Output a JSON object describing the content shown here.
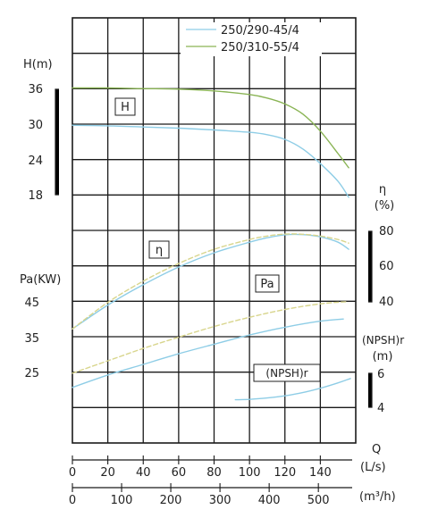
{
  "chart_data": {
    "type": "line",
    "legend": {
      "placement": "top-right",
      "entries": [
        {
          "label": "250/290-45/4",
          "color": "#8ecde6"
        },
        {
          "label": "250/310-55/4",
          "color": "#8ab455"
        }
      ]
    },
    "x_axis_ls": {
      "label": "(L/s)",
      "ticks": [
        "0",
        "20",
        "40",
        "60",
        "80",
        "100",
        "120",
        "140"
      ],
      "range": [
        0,
        160
      ]
    },
    "x_axis_m3h": {
      "label": "(m³/h)",
      "ticks": [
        "0",
        "100",
        "200",
        "300",
        "400",
        "500"
      ]
    },
    "q_label": "Q",
    "h_axis": {
      "label": "H(m)",
      "ticks": [
        "36",
        "30",
        "24",
        "18"
      ],
      "range": [
        18,
        38
      ]
    },
    "eta_axis": {
      "label": "η",
      "unit": "(%)",
      "ticks": [
        "80",
        "60",
        "40"
      ],
      "range": [
        40,
        80
      ]
    },
    "pa_axis": {
      "label": "Pa(KW)",
      "ticks": [
        "45",
        "35",
        "25"
      ],
      "range": [
        25,
        45
      ]
    },
    "npsh_axis": {
      "label": "(NPSH)r",
      "unit": "(m)",
      "ticks": [
        "6",
        "4"
      ],
      "range": [
        4,
        6
      ]
    },
    "curve_labels": {
      "H": "H",
      "eta": "η",
      "Pa": "Pa",
      "NPSH": "(NPSH)r"
    },
    "series": [
      {
        "name": "250/290-45/4",
        "curve": "H",
        "color": "#8ecde6",
        "x": [
          0,
          20,
          40,
          60,
          80,
          100,
          110,
          120,
          130,
          140,
          150,
          156
        ],
        "y": [
          30,
          29.9,
          29.7,
          29.5,
          29.2,
          28.8,
          28.4,
          27.6,
          26.0,
          23.5,
          20.5,
          17.8
        ]
      },
      {
        "name": "250/310-55/4",
        "curve": "H",
        "color": "#8ab455",
        "x": [
          0,
          20,
          40,
          60,
          80,
          100,
          110,
          120,
          130,
          140,
          150,
          156
        ],
        "y": [
          36.3,
          36.3,
          36.2,
          36.1,
          35.8,
          35.2,
          34.6,
          33.6,
          31.9,
          29.0,
          25.2,
          22.8
        ]
      },
      {
        "name": "250/290-45/4",
        "curve": "eta",
        "color": "#8ecde6",
        "x": [
          0,
          20,
          40,
          60,
          80,
          100,
          110,
          120,
          130,
          140,
          150,
          156
        ],
        "y": [
          25,
          38.5,
          50,
          60,
          68,
          74,
          76.5,
          78.2,
          78.3,
          77,
          74,
          70
        ]
      },
      {
        "name": "250/310-55/4",
        "curve": "eta",
        "color": "#d8d58c",
        "dashed": true,
        "x": [
          0,
          20,
          40,
          60,
          80,
          100,
          110,
          120,
          130,
          140,
          150,
          156
        ],
        "y": [
          25,
          40,
          52,
          62,
          70,
          75.5,
          77.5,
          78.6,
          78.5,
          77.5,
          75.5,
          73.5
        ]
      },
      {
        "name": "250/290-45/4",
        "curve": "Pa",
        "color": "#8ecde6",
        "x": [
          0,
          20,
          40,
          60,
          80,
          100,
          120,
          140,
          153
        ],
        "y": [
          21,
          24.5,
          27.5,
          30.5,
          33.2,
          35.8,
          38,
          39.7,
          40.3
        ]
      },
      {
        "name": "250/310-55/4",
        "curve": "Pa",
        "color": "#d8d58c",
        "dashed": true,
        "x": [
          0,
          20,
          40,
          60,
          80,
          100,
          120,
          140,
          155
        ],
        "y": [
          25,
          28.5,
          32,
          35.2,
          38.2,
          40.8,
          43,
          44.6,
          45.2
        ]
      },
      {
        "name": "250/290-45/4",
        "curve": "NPSH",
        "color": "#8ecde6",
        "x": [
          92,
          100,
          110,
          120,
          130,
          140,
          150,
          157
        ],
        "y": [
          4.5,
          4.52,
          4.6,
          4.72,
          4.9,
          5.15,
          5.45,
          5.7
        ]
      }
    ]
  }
}
